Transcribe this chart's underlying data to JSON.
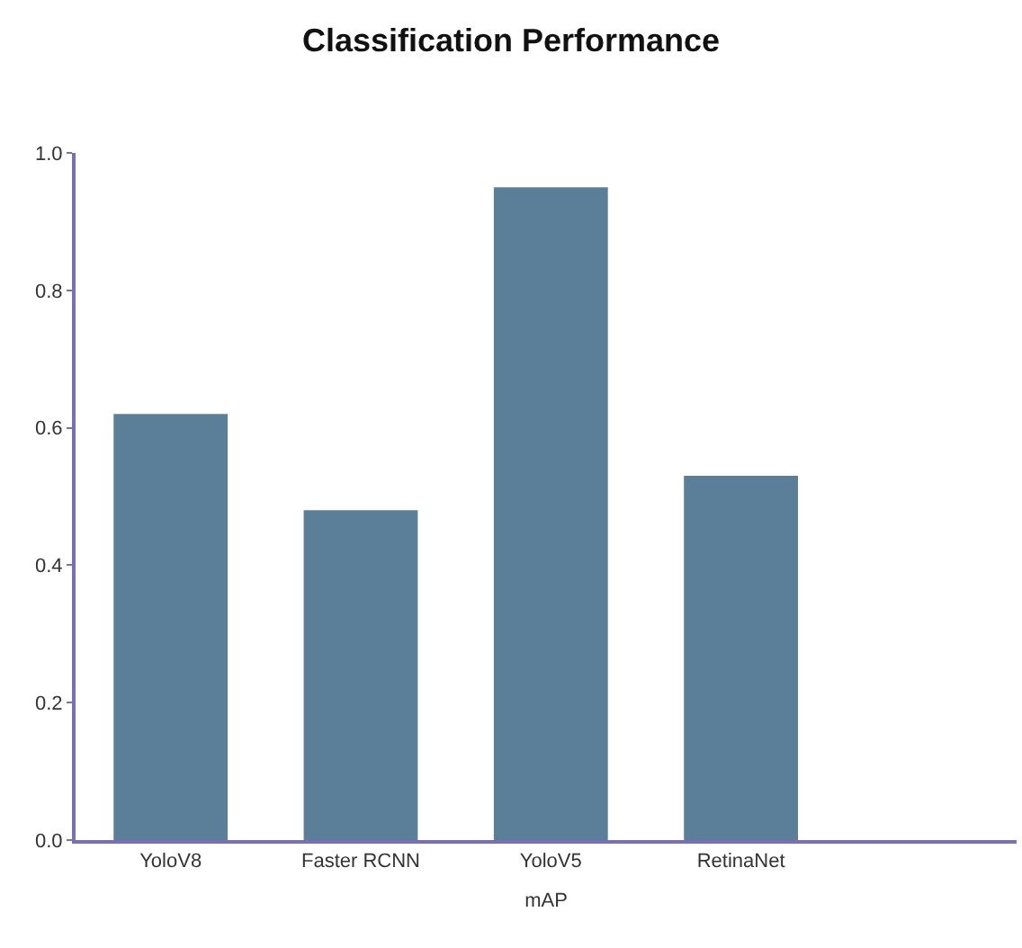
{
  "chart_data": {
    "type": "bar",
    "title": "Classification Performance",
    "xlabel": "mAP",
    "categories": [
      "YoloV8",
      "Faster RCNN",
      "YoloV5",
      "RetinaNet"
    ],
    "values": [
      0.62,
      0.48,
      0.95,
      0.53
    ],
    "color": "#5b7e99",
    "ylim": [
      0,
      1.0
    ],
    "yticks": [
      {
        "value": 0,
        "label": "0.0"
      },
      0.2,
      0.4,
      0.6,
      0.8,
      {
        "value": 1.0,
        "label": "1.0"
      }
    ]
  }
}
